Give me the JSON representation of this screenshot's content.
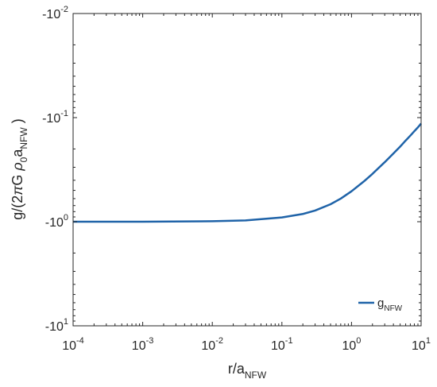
{
  "chart_data": {
    "type": "line",
    "x_scale": "log",
    "y_scale": "log",
    "y_reversed_negative": true,
    "xlim": [
      0.0001,
      10
    ],
    "ylim": [
      -10,
      -0.01
    ],
    "xlabel": {
      "main": "r/a",
      "sub": "NFW"
    },
    "ylabel": {
      "prefix": "g/(2",
      "pi": "π",
      "G": "G ",
      "rho": "ρ",
      "rho_sub": "0",
      "a": "a",
      "a_sub": "NFW",
      "suffix": " )"
    },
    "x_ticks": [
      {
        "value": 0.0001,
        "base": "10",
        "exp": "-4"
      },
      {
        "value": 0.001,
        "base": "10",
        "exp": "-3"
      },
      {
        "value": 0.01,
        "base": "10",
        "exp": "-2"
      },
      {
        "value": 0.1,
        "base": "10",
        "exp": "-1"
      },
      {
        "value": 1,
        "base": "10",
        "exp": "0"
      },
      {
        "value": 10,
        "base": "10",
        "exp": "1"
      }
    ],
    "y_ticks": [
      {
        "value": -0.01,
        "base": "-10",
        "exp": "-2"
      },
      {
        "value": -0.1,
        "base": "-10",
        "exp": "-1"
      },
      {
        "value": -1,
        "base": "-10",
        "exp": "0"
      },
      {
        "value": -10,
        "base": "-10",
        "exp": "1"
      }
    ],
    "series": [
      {
        "name": {
          "main": "g",
          "sub": "NFW"
        },
        "color": "#1f63a8",
        "x": [
          0.0001,
          0.001,
          0.01,
          0.03,
          0.1,
          0.2,
          0.3,
          0.5,
          0.7,
          1,
          1.5,
          2,
          3,
          4,
          5,
          6,
          7,
          8,
          9,
          10
        ],
        "y": [
          -1.0,
          -0.999,
          -0.99,
          -0.971,
          -0.91,
          -0.843,
          -0.781,
          -0.679,
          -0.6,
          -0.51,
          -0.411,
          -0.347,
          -0.268,
          -0.221,
          -0.19,
          -0.166,
          -0.149,
          -0.135,
          -0.124,
          -0.114
        ]
      }
    ],
    "legend_position": "bottom-right",
    "grid": false
  }
}
